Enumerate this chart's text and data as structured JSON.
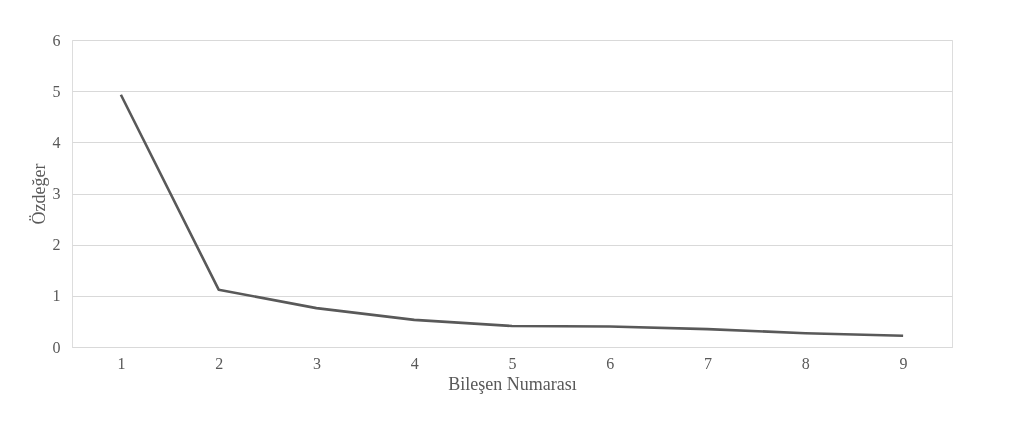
{
  "chart_data": {
    "type": "line",
    "xlabel": "Bileşen Numarası",
    "ylabel": "Özdeğer",
    "categories": [
      "1",
      "2",
      "3",
      "4",
      "5",
      "6",
      "7",
      "8",
      "9"
    ],
    "series": [
      {
        "color": "#595959",
        "values": [
          4.93,
          1.12,
          0.76,
          0.53,
          0.41,
          0.4,
          0.35,
          0.27,
          0.22
        ]
      }
    ],
    "ylim": [
      0,
      6
    ],
    "yticks": [
      0,
      1,
      2,
      3,
      4,
      5,
      6
    ],
    "grid": "y",
    "marker": "none",
    "line_style": "solid"
  }
}
